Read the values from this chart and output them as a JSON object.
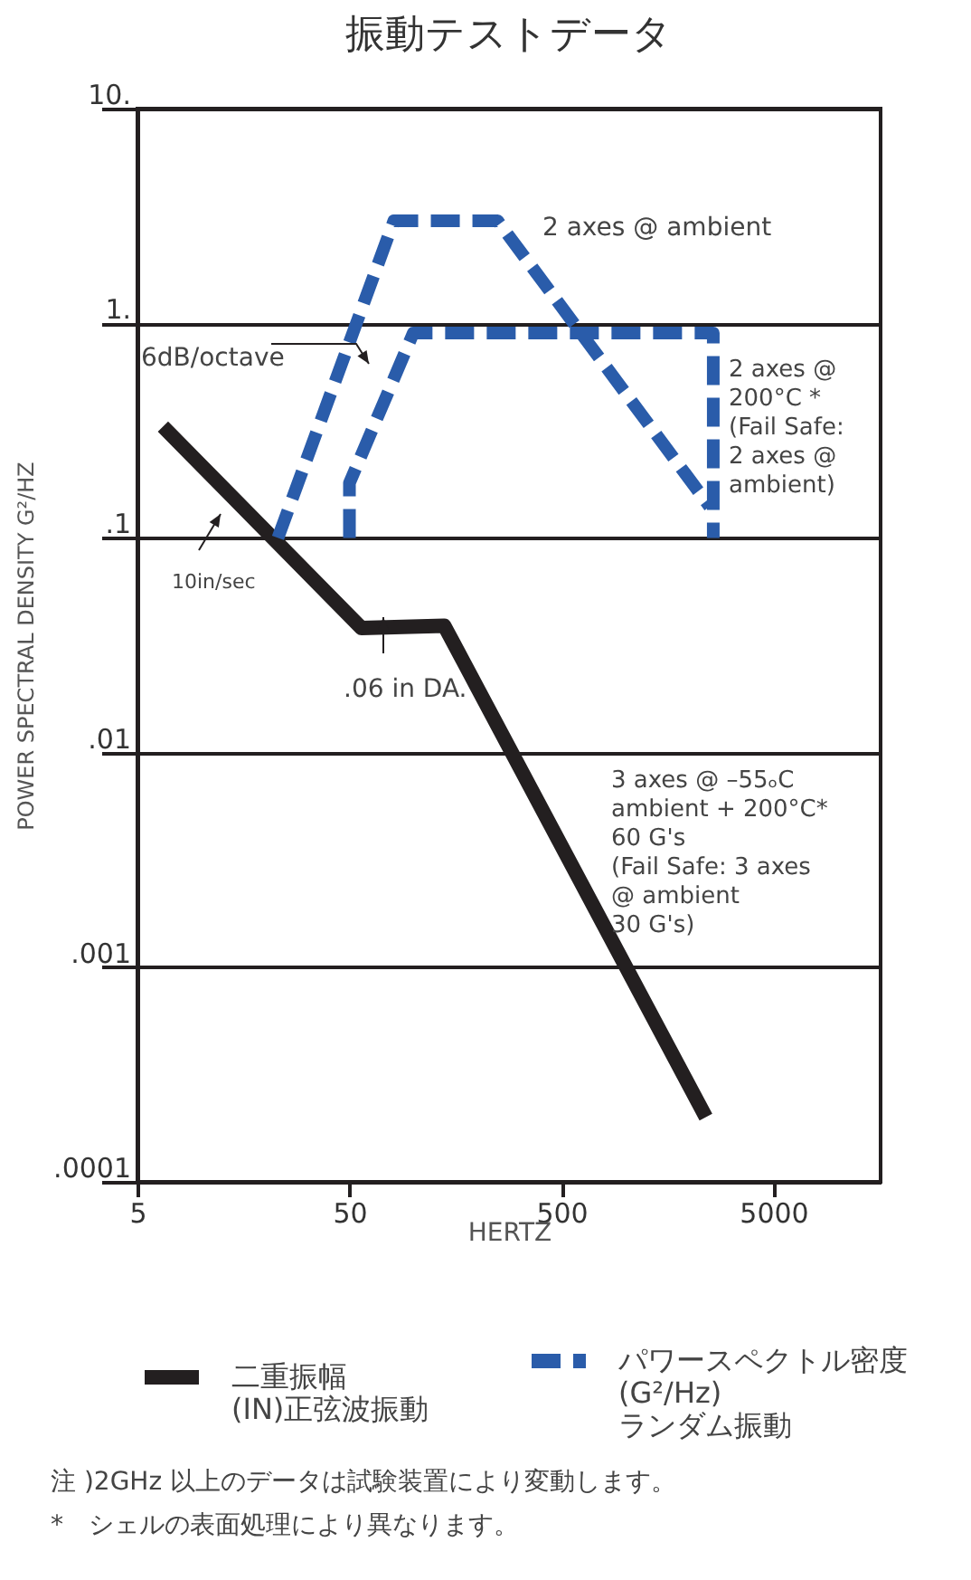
{
  "chart_data": {
    "type": "line",
    "title": "振動テストデータ",
    "xlabel": "HERTZ",
    "ylabel": "POWER SPECTRAL DENSITY G²/HZ",
    "log": "xy",
    "grid": "y",
    "legend": "bottom",
    "marker": "none",
    "xlim": [
      5,
      16000
    ],
    "xticks": [
      5,
      50,
      500,
      5000
    ],
    "ylim": [
      0.0001,
      10
    ],
    "yticks": [
      {
        "value": 0.0001,
        "label": ".0001"
      },
      {
        "value": 0.001,
        "label": ".001"
      },
      {
        "value": 0.01,
        "label": ".01"
      },
      {
        "value": 0.1,
        "label": ".1"
      },
      {
        "value": 1,
        "label": "1."
      },
      {
        "value": 10,
        "label": "10."
      }
    ],
    "series": [
      {
        "name": "二重振幅\n(IN)正弦波振動",
        "color": "#231f20",
        "line_style": "solid",
        "x": [
          6.6,
          57,
          140,
          2400
        ],
        "values": [
          0.33,
          0.038,
          0.039,
          0.0002
        ]
      },
      {
        "name": "パワースペクトル密度\n(G²/Hz)\nランダム振動",
        "color": "#2a5caa",
        "line_style": "dashed",
        "x": [
          23,
          81,
          250,
          2500
        ],
        "values": [
          0.1,
          3,
          3,
          0.14
        ]
      },
      {
        "color": "#2a5caa",
        "line_style": "dashed",
        "x": [
          50,
          50,
          100,
          2600,
          2600
        ],
        "values": [
          0.1,
          0.18,
          0.9,
          0.9,
          0.1
        ]
      }
    ],
    "annotations": [
      "2 axes @ ambient",
      "6dB/octave",
      "2 axes @\n200°C *\n(Fail Safe:\n2 axes @\nambient)",
      "10in/sec",
      ".06 in DA.",
      "3 axes @  –55ₒC\nambient + 200°C*\n60 G's\n(Fail Safe: 3 axes\n@ ambient\n30 G's)",
      "注 )2GHz 以上のデータは試験装置により変動します。",
      "*　シェルの表面処理により異なります。"
    ]
  }
}
